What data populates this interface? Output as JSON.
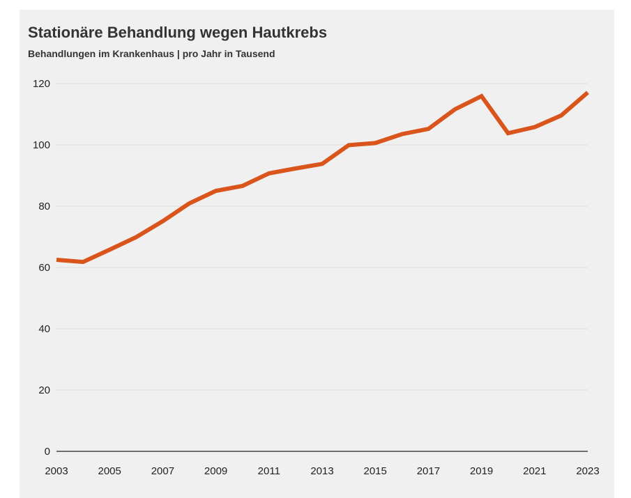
{
  "chart_data": {
    "type": "line",
    "title": "Stationäre Behandlung wegen Hautkrebs",
    "subtitle": "Behandlungen im Krankenhaus | pro Jahr in Tausend",
    "xlabel": "",
    "ylabel": "",
    "x": [
      2003,
      2004,
      2005,
      2006,
      2007,
      2008,
      2009,
      2010,
      2011,
      2012,
      2013,
      2014,
      2015,
      2016,
      2017,
      2018,
      2019,
      2020,
      2021,
      2022,
      2023
    ],
    "series": [
      {
        "values": [
          62.5,
          61.8,
          65.8,
          69.9,
          75.1,
          80.9,
          85.0,
          86.6,
          90.7,
          92.3,
          93.8,
          99.9,
          100.6,
          103.5,
          105.2,
          111.6,
          115.9,
          103.8,
          105.8,
          109.6,
          117.1
        ]
      }
    ],
    "xlim": [
      2003,
      2023
    ],
    "ylim": [
      0,
      120
    ],
    "yticks": [
      "0",
      "20",
      "40",
      "60",
      "80",
      "100",
      "120"
    ],
    "xticks": [
      "2003",
      "2005",
      "2007",
      "2009",
      "2011",
      "2013",
      "2015",
      "2017",
      "2019",
      "2021",
      "2023"
    ],
    "grid": "horizontal",
    "legend": "none",
    "colors": {
      "line": "#d9551c",
      "grid": "#dcdcdc",
      "axis": "#222222",
      "background": "#f1f0f0"
    }
  }
}
